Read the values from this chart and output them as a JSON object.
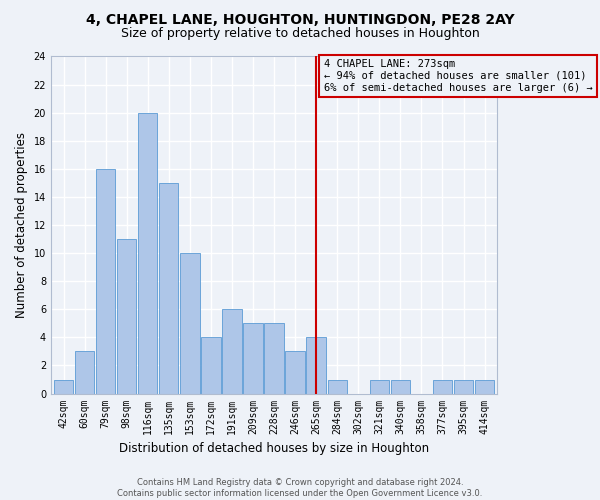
{
  "title1": "4, CHAPEL LANE, HOUGHTON, HUNTINGDON, PE28 2AY",
  "title2": "Size of property relative to detached houses in Houghton",
  "xlabel": "Distribution of detached houses by size in Houghton",
  "ylabel": "Number of detached properties",
  "categories": [
    "42sqm",
    "60sqm",
    "79sqm",
    "98sqm",
    "116sqm",
    "135sqm",
    "153sqm",
    "172sqm",
    "191sqm",
    "209sqm",
    "228sqm",
    "246sqm",
    "265sqm",
    "284sqm",
    "302sqm",
    "321sqm",
    "340sqm",
    "358sqm",
    "377sqm",
    "395sqm",
    "414sqm"
  ],
  "values": [
    1,
    3,
    16,
    11,
    20,
    15,
    10,
    4,
    6,
    5,
    5,
    3,
    4,
    1,
    0,
    1,
    1,
    0,
    1,
    1,
    1
  ],
  "bar_color": "#aec6e8",
  "bar_edge_color": "#5b9bd5",
  "vline_x_index": 12,
  "vline_color": "#cc0000",
  "annotation_text": "4 CHAPEL LANE: 273sqm\n← 94% of detached houses are smaller (101)\n6% of semi-detached houses are larger (6) →",
  "annotation_box_edgecolor": "#cc0000",
  "ylim": [
    0,
    24
  ],
  "yticks": [
    0,
    2,
    4,
    6,
    8,
    10,
    12,
    14,
    16,
    18,
    20,
    22,
    24
  ],
  "footer1": "Contains HM Land Registry data © Crown copyright and database right 2024.",
  "footer2": "Contains public sector information licensed under the Open Government Licence v3.0.",
  "bg_color": "#eef2f8",
  "grid_color": "#ffffff",
  "title1_fontsize": 10,
  "title2_fontsize": 9,
  "tick_fontsize": 7,
  "ylabel_fontsize": 8.5,
  "xlabel_fontsize": 8.5,
  "footer_fontsize": 6,
  "ann_fontsize": 7.5
}
